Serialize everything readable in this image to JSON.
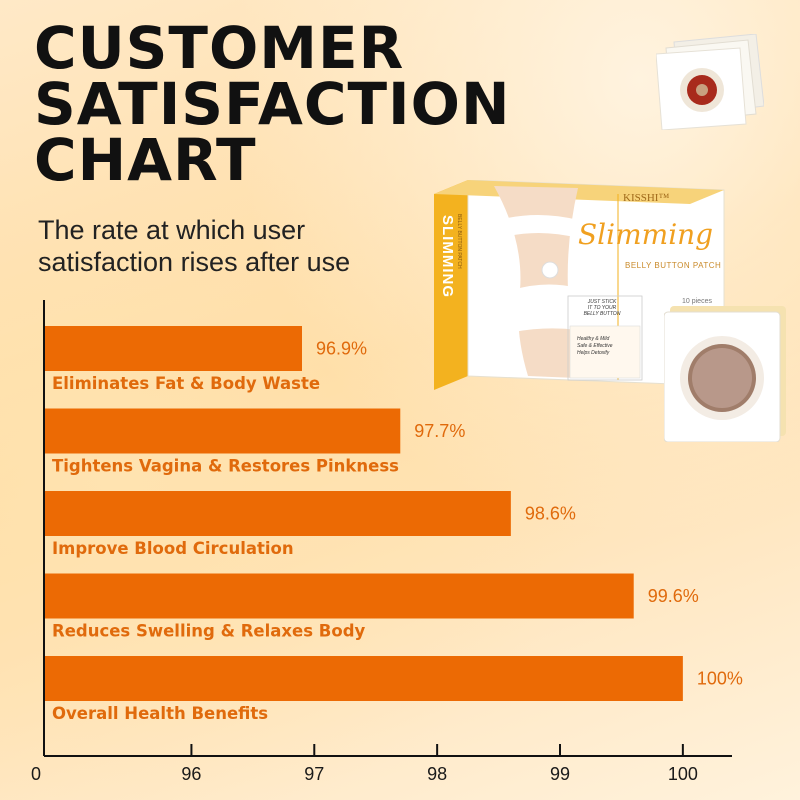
{
  "title_lines": [
    "CUSTOMER",
    "SATISFACTION",
    "CHART"
  ],
  "subtitle_lines": [
    "The rate at which user",
    "satisfaction rises after use"
  ],
  "product": {
    "brand": "KISSHI™",
    "name": "Slimming",
    "subtitle": "BELLY BUTTON PATCH",
    "side_name": "SLIMMING",
    "side_sub": "BELLY BUTTON PATCH",
    "pieces": "10 pieces",
    "note_lines": [
      "JUST STICK",
      "IT TO YOUR",
      "BELLY BUTTON"
    ],
    "feature_lines": [
      "Healthy & Mild",
      "Safe & Effective",
      "Helps Detoxify"
    ]
  },
  "chart_data": {
    "type": "bar",
    "orientation": "horizontal",
    "categories": [
      "Eliminates Fat & Body Waste",
      "Tightens Vagina & Restores Pinkness",
      "Improve Blood Circulation",
      "Reduces Swelling & Relaxes Body",
      "Overall Health Benefits"
    ],
    "values": [
      96.9,
      97.7,
      98.6,
      99.6,
      100
    ],
    "value_labels": [
      "96.9%",
      "97.7%",
      "98.6%",
      "99.6%",
      "100%"
    ],
    "x_ticks": [
      "0",
      "96",
      "97",
      "98",
      "99",
      "100"
    ],
    "x_tick_values": [
      95.15,
      96,
      97,
      98,
      99,
      100
    ],
    "xlim": [
      94.8,
      100.4
    ],
    "axis_break": true,
    "grid": false,
    "bar_color": "#ec6a04",
    "label_color": "#e06a0c"
  }
}
